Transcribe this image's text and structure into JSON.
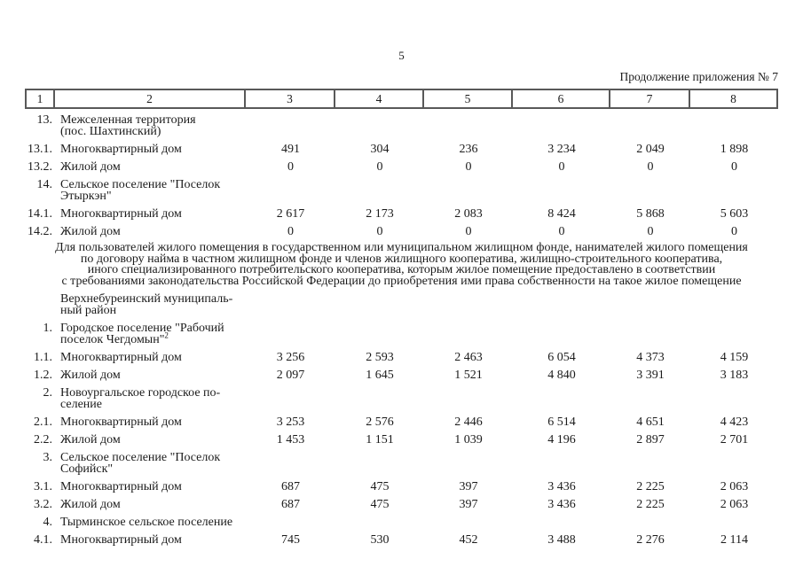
{
  "page": {
    "number": "5",
    "continuation_note": "Продолжение приложения № 7"
  },
  "table": {
    "column_headers": [
      "1",
      "2",
      "3",
      "4",
      "5",
      "6",
      "7",
      "8"
    ],
    "top_rows": [
      {
        "num": "13.",
        "name_lines": [
          "Межселенная территория",
          "(пос. Шахтинский)"
        ],
        "values": [
          "",
          "",
          "",
          "",
          "",
          ""
        ]
      },
      {
        "num": "13.1.",
        "name_lines": [
          "Многоквартирный дом"
        ],
        "values": [
          "491",
          "304",
          "236",
          "3 234",
          "2 049",
          "1 898"
        ]
      },
      {
        "num": "13.2.",
        "name_lines": [
          "Жилой дом"
        ],
        "values": [
          "0",
          "0",
          "0",
          "0",
          "0",
          "0"
        ]
      },
      {
        "num": "14.",
        "name_lines": [
          "Сельское поселение \"Поселок",
          "Этыркэн\""
        ],
        "values": [
          "",
          "",
          "",
          "",
          "",
          ""
        ]
      },
      {
        "num": "14.1.",
        "name_lines": [
          "Многоквартирный дом"
        ],
        "values": [
          "2 617",
          "2 173",
          "2 083",
          "8 424",
          "5 868",
          "5 603"
        ]
      },
      {
        "num": "14.2.",
        "name_lines": [
          "Жилой дом"
        ],
        "values": [
          "0",
          "0",
          "0",
          "0",
          "0",
          "0"
        ]
      }
    ],
    "note_lines": [
      "Для пользователей жилого помещения в государственном или муниципальном жилищном фонде, нанимателей жилого помещения",
      "по договору найма в частном жилищном фонде и членов жилищного кооператива, жилищно-строительного кооператива,",
      "иного специализированного потребительского кооператива, которым жилое помещение предоставлено в соответствии",
      "с требованиями законодательства Российской Федерации до приобретения ими права собственности на такое жилое помещение"
    ],
    "bottom_rows": [
      {
        "num": "",
        "name_lines": [
          "Верхнебуреинский муниципаль-",
          "ный район"
        ],
        "values": [
          "",
          "",
          "",
          "",
          "",
          ""
        ]
      },
      {
        "num": "1.",
        "name_lines": [
          "Городское поселение \"Рабочий",
          "поселок Чегдомын\""
        ],
        "sup": "2",
        "values": [
          "",
          "",
          "",
          "",
          "",
          ""
        ]
      },
      {
        "num": "1.1.",
        "name_lines": [
          "Многоквартирный дом"
        ],
        "values": [
          "3 256",
          "2 593",
          "2 463",
          "6 054",
          "4 373",
          "4 159"
        ]
      },
      {
        "num": "1.2.",
        "name_lines": [
          "Жилой дом"
        ],
        "values": [
          "2 097",
          "1 645",
          "1 521",
          "4 840",
          "3 391",
          "3 183"
        ]
      },
      {
        "num": "2.",
        "name_lines": [
          "Новоургальское городское по-",
          "селение"
        ],
        "values": [
          "",
          "",
          "",
          "",
          "",
          ""
        ]
      },
      {
        "num": "2.1.",
        "name_lines": [
          "Многоквартирный дом"
        ],
        "values": [
          "3 253",
          "2 576",
          "2 446",
          "6 514",
          "4 651",
          "4 423"
        ]
      },
      {
        "num": "2.2.",
        "name_lines": [
          "Жилой дом"
        ],
        "values": [
          "1 453",
          "1 151",
          "1 039",
          "4 196",
          "2 897",
          "2 701"
        ]
      },
      {
        "num": "3.",
        "name_lines": [
          "Сельское поселение \"Поселок",
          "Софийск\""
        ],
        "values": [
          "",
          "",
          "",
          "",
          "",
          ""
        ]
      },
      {
        "num": "3.1.",
        "name_lines": [
          "Многоквартирный дом"
        ],
        "values": [
          "687",
          "475",
          "397",
          "3 436",
          "2 225",
          "2 063"
        ]
      },
      {
        "num": "3.2.",
        "name_lines": [
          "Жилой дом"
        ],
        "values": [
          "687",
          "475",
          "397",
          "3 436",
          "2 225",
          "2 063"
        ]
      },
      {
        "num": "4.",
        "name_lines": [
          "Тырминское сельское поселение"
        ],
        "values": [
          "",
          "",
          "",
          "",
          "",
          ""
        ]
      },
      {
        "num": "4.1.",
        "name_lines": [
          "Многоквартирный дом"
        ],
        "values": [
          "745",
          "530",
          "452",
          "3 488",
          "2 276",
          "2 114"
        ]
      }
    ]
  }
}
